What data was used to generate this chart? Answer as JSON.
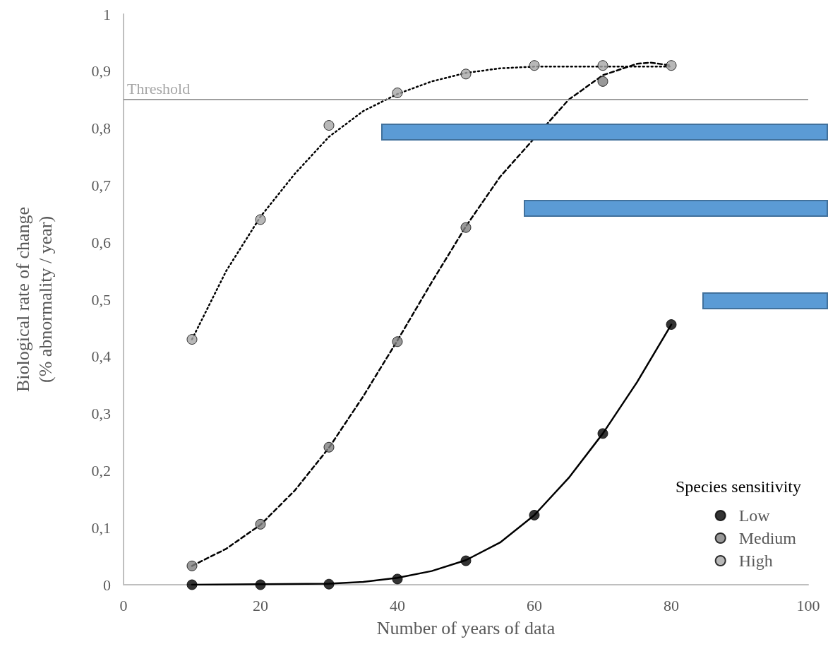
{
  "chart_data": {
    "type": "scatter",
    "xlabel": "Number of years of data",
    "ylabel": "Biological rate of change\n(% abnormality / year)",
    "legend_title": "Species sensitivity",
    "legend": "bottom right",
    "grid": false,
    "marker": "circle",
    "xlim": [
      0,
      100
    ],
    "xticks": [
      0,
      20,
      40,
      60,
      80,
      100
    ],
    "ylim": [
      0,
      1
    ],
    "yticks": [
      0,
      {
        "value": 0.1,
        "label": "0,1"
      },
      {
        "value": 0.2,
        "label": "0,2"
      },
      {
        "value": 0.3,
        "label": "0,3"
      },
      {
        "value": 0.4,
        "label": "0,4"
      },
      {
        "value": 0.5,
        "label": "0,5"
      },
      {
        "value": 0.6,
        "label": "0,6"
      },
      {
        "value": 0.7,
        "label": "0,7"
      },
      {
        "value": 0.8,
        "label": "0,8"
      },
      {
        "value": 0.9,
        "label": "0,9"
      },
      1
    ],
    "ref_lines": [
      {
        "axis": "y",
        "value": 0.85,
        "label": "Threshold",
        "color": "#7f7f7f"
      }
    ],
    "series": [
      {
        "type": "line",
        "color": "#000000",
        "line_style": "dotted",
        "marker": "none",
        "x": [
          10,
          15,
          20,
          25,
          30,
          35,
          40,
          45,
          50,
          55,
          60,
          65,
          70,
          75,
          80
        ],
        "values": [
          0.43,
          0.55,
          0.645,
          0.72,
          0.785,
          0.83,
          0.86,
          0.882,
          0.897,
          0.905,
          0.908,
          0.908,
          0.908,
          0.908,
          0.908
        ]
      },
      {
        "type": "line",
        "color": "#000000",
        "line_style": "dashed",
        "marker": "none",
        "x": [
          10,
          15,
          20,
          25,
          30,
          35,
          40,
          45,
          50,
          55,
          65,
          70,
          75,
          77,
          80
        ],
        "values": [
          0.033,
          0.063,
          0.105,
          0.165,
          0.24,
          0.33,
          0.428,
          0.53,
          0.628,
          0.715,
          0.85,
          0.893,
          0.913,
          0.915,
          0.91
        ]
      },
      {
        "type": "line",
        "color": "#000000",
        "line_style": "solid",
        "marker": "none",
        "x": [
          10,
          20,
          30,
          35,
          40,
          45,
          50,
          55,
          60,
          65,
          70,
          75,
          80
        ],
        "values": [
          0,
          0.001,
          0.002,
          0.005,
          0.012,
          0.024,
          0.043,
          0.074,
          0.122,
          0.187,
          0.265,
          0.355,
          0.456
        ]
      },
      {
        "name": "Low",
        "color": "#000000",
        "x": [
          10,
          20,
          30,
          40,
          50,
          60,
          70,
          80
        ],
        "values": [
          0,
          0,
          0.001,
          0.01,
          0.042,
          0.122,
          0.265,
          0.456
        ]
      },
      {
        "name": "Medium",
        "color": "#808080",
        "x": [
          10,
          20,
          30,
          40,
          50,
          70
        ],
        "values": [
          0.033,
          0.106,
          0.241,
          0.426,
          0.626,
          0.882
        ]
      },
      {
        "name": "High",
        "color": "#a6a6a6",
        "x": [
          10,
          20,
          30,
          40,
          50,
          60,
          70,
          80
        ],
        "values": [
          0.43,
          0.64,
          0.805,
          0.862,
          0.895,
          0.91,
          0.91,
          0.91
        ]
      }
    ]
  }
}
